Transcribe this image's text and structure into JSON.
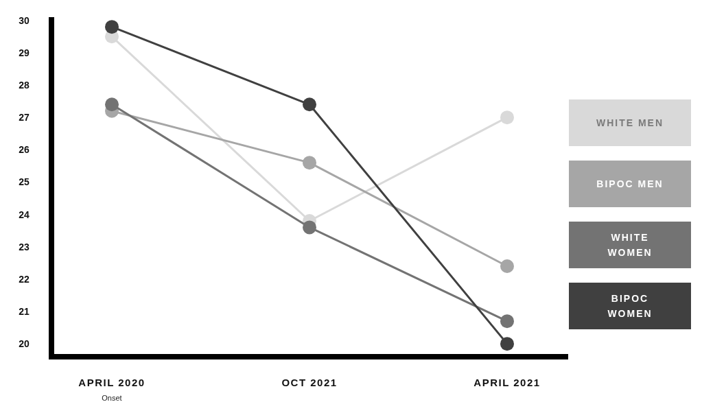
{
  "chart_data": {
    "type": "line",
    "categories": [
      "APRIL 2020",
      "OCT 2021",
      "APRIL 2021"
    ],
    "series": [
      {
        "name": "WHITE MEN",
        "color": "#d9d9d9",
        "values": [
          29.5,
          23.8,
          27.0
        ]
      },
      {
        "name": "BIPOC MEN",
        "color": "#a6a6a6",
        "values": [
          27.2,
          25.6,
          22.4
        ]
      },
      {
        "name": "WHITE WOMEN",
        "color": "#737373",
        "values": [
          27.4,
          23.6,
          20.7
        ]
      },
      {
        "name": "BIPOC WOMEN",
        "color": "#404040",
        "values": [
          29.8,
          27.4,
          20.0
        ]
      }
    ],
    "ylim": [
      19.6,
      30.1
    ],
    "yticks": [
      20,
      21,
      22,
      23,
      24,
      25,
      26,
      27,
      28,
      29,
      30
    ],
    "annotations": [
      "Onset"
    ],
    "marker": "circle",
    "legend": "right",
    "grid": false
  }
}
